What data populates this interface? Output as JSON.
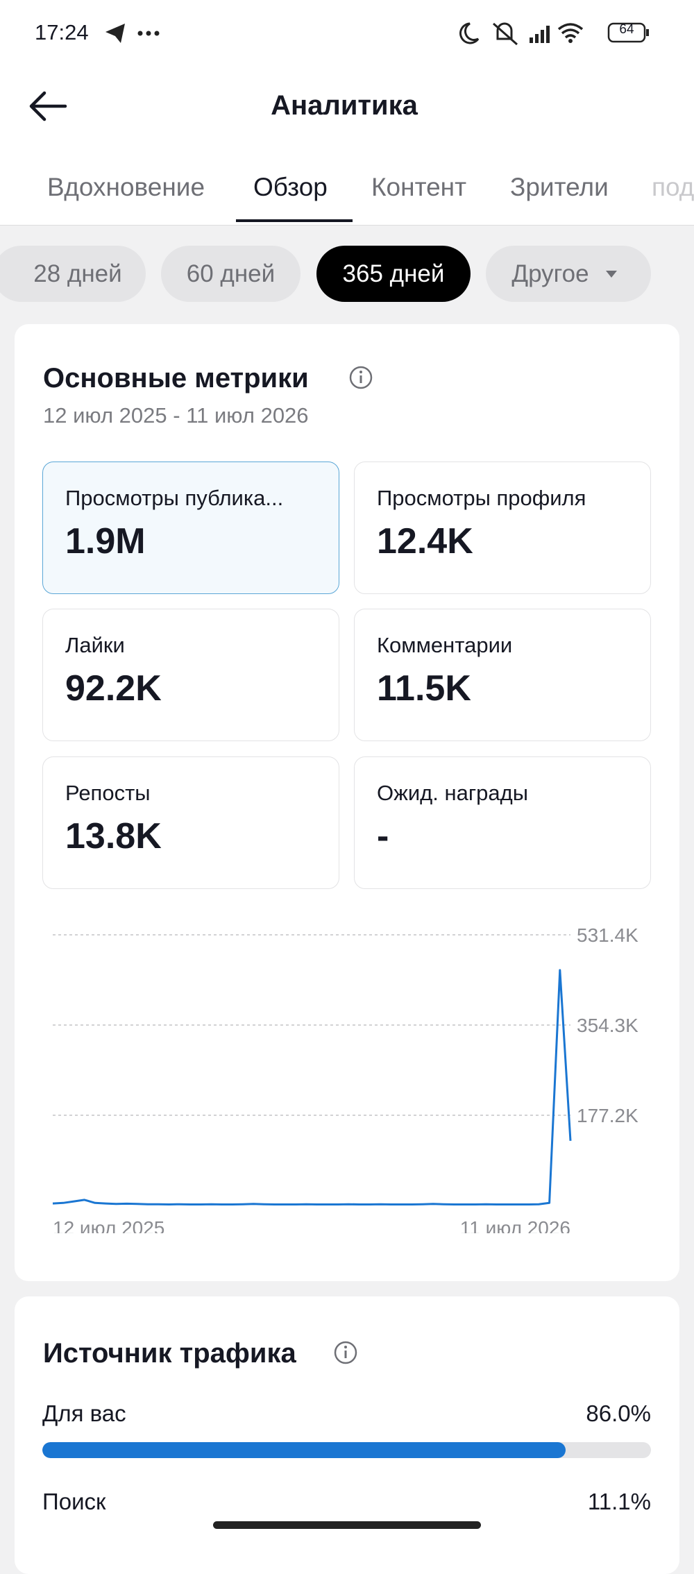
{
  "status_bar": {
    "time": "17:24",
    "battery": "64"
  },
  "header": {
    "title": "Аналитика"
  },
  "tabs": [
    "Вдохновение",
    "Обзор",
    "Контент",
    "Зрители",
    "под"
  ],
  "periods": [
    "28 дней",
    "60 дней",
    "365 дней",
    "Другое"
  ],
  "metrics_card": {
    "title": "Основные метрики",
    "date_range": "12 июл 2025 - 11 июл 2026",
    "metrics": [
      {
        "label": "Просмотры публика...",
        "value": "1.9M"
      },
      {
        "label": "Просмотры профиля",
        "value": "12.4K"
      },
      {
        "label": "Лайки",
        "value": "92.2K"
      },
      {
        "label": "Комментарии",
        "value": "11.5K"
      },
      {
        "label": "Репосты",
        "value": "13.8K"
      },
      {
        "label": "Ожид. награды",
        "value": "-"
      }
    ]
  },
  "chart_data": {
    "type": "line",
    "color": "#1a76d2",
    "categories": [
      "12 июл 2025",
      null,
      null,
      null,
      null,
      null,
      null,
      null,
      null,
      null,
      null,
      null,
      null,
      null,
      null,
      null,
      null,
      null,
      null,
      null,
      null,
      null,
      null,
      null,
      null,
      null,
      null,
      null,
      null,
      null,
      null,
      null,
      null,
      null,
      null,
      null,
      null,
      null,
      null,
      null,
      null,
      null,
      null,
      null,
      null,
      null,
      null,
      null,
      null,
      "11 июл 2026"
    ],
    "values": [
      4000,
      5000,
      8000,
      11000,
      5000,
      4000,
      3000,
      3500,
      3000,
      2500,
      2500,
      2000,
      2500,
      2000,
      2000,
      2500,
      2000,
      2000,
      2500,
      3000,
      2500,
      2000,
      2000,
      2000,
      2500,
      2000,
      2000,
      2000,
      2500,
      2000,
      2000,
      2500,
      2000,
      2000,
      2000,
      2500,
      3000,
      2500,
      2000,
      2000,
      2000,
      2500,
      2000,
      2000,
      2000,
      2000,
      2500,
      5000,
      462000,
      127000
    ],
    "ylim": [
      0,
      531400
    ],
    "yticks": [
      {
        "value": 177200,
        "label": "177.2K"
      },
      {
        "value": 354300,
        "label": "354.3K"
      },
      {
        "value": 531400,
        "label": "531.4K"
      }
    ],
    "grid": true
  },
  "traffic_card": {
    "title": "Источник трафика",
    "sources": [
      {
        "name": "Для вас",
        "value": 86.0,
        "label": "86.0%"
      },
      {
        "name": "Поиск",
        "value": 11.1,
        "label": "11.1%"
      }
    ]
  }
}
